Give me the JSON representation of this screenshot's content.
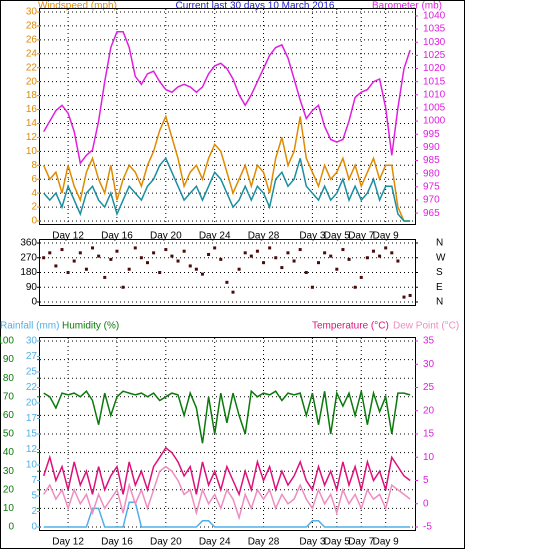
{
  "chart_data": [
    {
      "type": "line",
      "title": "Current last 30 days 10 March 2016",
      "ylabel": "Windspeed (mph)",
      "y2label": "Barometer (mb)",
      "x": [
        10,
        10.5,
        11,
        11.5,
        12,
        12.5,
        13,
        13.5,
        14,
        14.5,
        15,
        15.5,
        16,
        16.5,
        17,
        17.5,
        18,
        18.5,
        19,
        19.5,
        20,
        20.5,
        21,
        21.5,
        22,
        22.5,
        23,
        23.5,
        24,
        24.5,
        25,
        25.5,
        26,
        26.5,
        27,
        27.5,
        28,
        28.5,
        29,
        29.5,
        30,
        30.5,
        31,
        31.5,
        32,
        32.5,
        33,
        33.5,
        34,
        34.5,
        35,
        35.5,
        36,
        36.5,
        37,
        37.5,
        38,
        38.5,
        39,
        39.5,
        40
      ],
      "xlim": [
        9.7,
        40.4
      ],
      "xticks": [
        {
          "value": 12,
          "label": "Day 12"
        },
        {
          "value": 16,
          "label": "Day 16"
        },
        {
          "value": 20,
          "label": "Day 20"
        },
        {
          "value": 24,
          "label": "Day 24"
        },
        {
          "value": 28,
          "label": "Day 28"
        },
        {
          "value": 32,
          "label": "Day 3"
        },
        {
          "value": 34,
          "label": "Day 5"
        },
        {
          "value": 36,
          "label": "Day 7"
        },
        {
          "value": 38,
          "label": "Day 9"
        }
      ],
      "ylim": [
        0,
        30
      ],
      "yticks": [
        0,
        2,
        4,
        6,
        8,
        10,
        12,
        14,
        16,
        18,
        20,
        22,
        24,
        26,
        28,
        30
      ],
      "y2lim": [
        962,
        1041.5
      ],
      "y2ticks": [
        965,
        970,
        975,
        980,
        985,
        990,
        995,
        1000,
        1005,
        1010,
        1015,
        1020,
        1025,
        1030,
        1035,
        1040
      ],
      "grid": true,
      "series": [
        {
          "color": "#e08a00",
          "values": [
            8,
            6,
            7,
            4,
            8,
            5,
            3,
            7,
            9,
            6,
            4,
            8,
            3,
            6,
            8,
            7,
            5,
            8,
            10,
            13,
            15,
            12,
            9,
            5,
            7,
            8,
            6,
            9,
            11,
            10,
            7,
            4,
            6,
            8,
            5,
            8,
            7,
            4,
            9,
            12,
            8,
            10,
            15,
            9,
            7,
            5,
            8,
            6,
            7,
            9,
            6,
            8,
            5,
            7,
            9,
            6,
            8,
            8,
            2,
            0,
            0
          ]
        },
        {
          "color": "#1a8fa0",
          "values": [
            4,
            3,
            4,
            2,
            5,
            3,
            1,
            4,
            5,
            3,
            2,
            4,
            1,
            3,
            5,
            4,
            3,
            5,
            6,
            8,
            9,
            7,
            5,
            3,
            4,
            5,
            3,
            5,
            7,
            6,
            4,
            2,
            3,
            5,
            3,
            5,
            4,
            2,
            6,
            7,
            5,
            6,
            9,
            5,
            4,
            3,
            5,
            3,
            4,
            6,
            3,
            5,
            3,
            4,
            6,
            3,
            5,
            5,
            1,
            0,
            0
          ]
        },
        {
          "color": "#e020e0",
          "axis": "y2",
          "values": [
            996,
            1000,
            1004,
            1006,
            1003,
            996,
            984,
            987,
            989,
            1000,
            1015,
            1028,
            1034,
            1034,
            1028,
            1017,
            1014,
            1018,
            1019,
            1015,
            1012,
            1011,
            1013,
            1014,
            1013,
            1011,
            1013,
            1018,
            1021,
            1022,
            1020,
            1016,
            1010,
            1006,
            1010,
            1015,
            1020,
            1025,
            1028,
            1029,
            1024,
            1016,
            1008,
            1001,
            1004,
            1006,
            998,
            993,
            992,
            993,
            1000,
            1009,
            1011,
            1012,
            1015,
            1016,
            1005,
            987,
            1005,
            1020,
            1027
          ]
        }
      ]
    },
    {
      "type": "scatter",
      "x": [
        10,
        10.5,
        11,
        11.5,
        12,
        12.5,
        13,
        13.5,
        14,
        14.5,
        15,
        15.5,
        16,
        16.5,
        17,
        17.5,
        18,
        18.5,
        19,
        19.5,
        20,
        20.5,
        21,
        21.5,
        22,
        22.5,
        23,
        23.5,
        24,
        24.5,
        25,
        25.5,
        26,
        26.5,
        27,
        27.5,
        28,
        28.5,
        29,
        29.5,
        30,
        30.5,
        31,
        31.5,
        32,
        32.5,
        33,
        33.5,
        34,
        34.5,
        35,
        35.5,
        36,
        36.5,
        37,
        37.5,
        38,
        38.5,
        39,
        39.5,
        40
      ],
      "xlim": [
        9.7,
        40.4
      ],
      "ylim": [
        0,
        360
      ],
      "yticks": [
        0,
        90,
        180,
        270,
        360
      ],
      "y2lim": [
        0,
        360
      ],
      "y2ticks": [
        {
          "value": 360,
          "label": "N"
        },
        {
          "value": 270,
          "label": "W"
        },
        {
          "value": 180,
          "label": "S"
        },
        {
          "value": 90,
          "label": "E"
        },
        {
          "value": 0,
          "label": "N"
        }
      ],
      "grid": true,
      "color": "#4a0a0a",
      "values": [
        270,
        300,
        220,
        320,
        180,
        250,
        300,
        200,
        330,
        280,
        150,
        260,
        310,
        90,
        200,
        330,
        270,
        240,
        300,
        180,
        320,
        280,
        250,
        310,
        220,
        200,
        170,
        290,
        330,
        260,
        120,
        60,
        200,
        300,
        280,
        310,
        240,
        330,
        270,
        210,
        300,
        250,
        320,
        180,
        90,
        240,
        300,
        280,
        200,
        320,
        260,
        90,
        150,
        270,
        310,
        280,
        330,
        300,
        250,
        30,
        40
      ]
    },
    {
      "type": "line",
      "x": [
        10,
        10.5,
        11,
        11.5,
        12,
        12.5,
        13,
        13.5,
        14,
        14.5,
        15,
        15.5,
        16,
        16.5,
        17,
        17.5,
        18,
        18.5,
        19,
        19.5,
        20,
        20.5,
        21,
        21.5,
        22,
        22.5,
        23,
        23.5,
        24,
        24.5,
        25,
        25.5,
        26,
        26.5,
        27,
        27.5,
        28,
        28.5,
        29,
        29.5,
        30,
        30.5,
        31,
        31.5,
        32,
        32.5,
        33,
        33.5,
        34,
        34.5,
        35,
        35.5,
        36,
        36.5,
        37,
        37.5,
        38,
        38.5,
        39,
        39.5,
        40
      ],
      "xlim": [
        9.7,
        40.4
      ],
      "xticks": [
        {
          "value": 12,
          "label": "Day 12"
        },
        {
          "value": 16,
          "label": "Day 16"
        },
        {
          "value": 20,
          "label": "Day 20"
        },
        {
          "value": 24,
          "label": "Day 24"
        },
        {
          "value": 28,
          "label": "Day 28"
        },
        {
          "value": 32,
          "label": "Day 3"
        },
        {
          "value": 34,
          "label": "Day 5"
        },
        {
          "value": 36,
          "label": "Day 7"
        },
        {
          "value": 38,
          "label": "Day 9"
        }
      ],
      "ylim": [
        0,
        100
      ],
      "yticks": [
        0,
        10,
        20,
        30,
        40,
        50,
        60,
        70,
        80,
        90,
        100
      ],
      "y2lim": [
        -5,
        35
      ],
      "y2ticks": [
        -5,
        0,
        5,
        10,
        15,
        20,
        25,
        30,
        35
      ],
      "y3lim": [
        0,
        30
      ],
      "y3ticks": [
        0,
        {
          "value": 2.5,
          "label": "2"
        },
        5,
        {
          "value": 7.5,
          "label": "7"
        },
        10,
        {
          "value": 12.5,
          "label": "12"
        },
        15,
        {
          "value": 17.5,
          "label": "17"
        },
        20,
        {
          "value": 22.5,
          "label": "22"
        },
        25,
        {
          "value": 27.5,
          "label": "27"
        },
        30
      ],
      "grid": true,
      "series": [
        {
          "name": "Rainfall (mm)",
          "color": "#4fb0e8",
          "axis": "y3",
          "values": [
            0,
            0,
            0,
            0,
            0,
            0,
            0,
            0,
            3,
            3,
            0,
            0,
            0,
            0,
            4,
            4,
            0,
            0,
            0,
            0,
            0,
            0,
            0,
            0,
            0,
            0,
            1,
            1,
            0,
            0,
            0,
            0,
            0,
            0,
            0,
            0,
            0,
            0,
            0,
            0,
            0,
            0,
            0,
            0,
            1,
            1,
            0,
            0,
            0,
            0,
            0,
            0,
            0,
            0,
            0,
            0,
            0,
            0,
            0,
            0,
            0
          ]
        },
        {
          "name": "Humidity (%)",
          "color": "#0a7a0a",
          "values": [
            72,
            70,
            64,
            72,
            71,
            72,
            70,
            73,
            68,
            55,
            72,
            60,
            70,
            73,
            72,
            71,
            72,
            70,
            72,
            68,
            70,
            72,
            71,
            60,
            72,
            64,
            45,
            70,
            50,
            72,
            56,
            72,
            60,
            50,
            73,
            70,
            72,
            71,
            73,
            68,
            72,
            71,
            72,
            60,
            72,
            55,
            73,
            50,
            72,
            65,
            72,
            60,
            73,
            55,
            72,
            62,
            70,
            50,
            72,
            72,
            71
          ]
        },
        {
          "name": "Temperature (°C)",
          "color": "#e0107a",
          "axis": "y2",
          "values": [
            6,
            10,
            5,
            8,
            3,
            9,
            4,
            7,
            2,
            8,
            3,
            6,
            8,
            2,
            9,
            4,
            7,
            3,
            8,
            10,
            12,
            11,
            9,
            6,
            8,
            2,
            9,
            4,
            7,
            3,
            8,
            5,
            2,
            7,
            3,
            9,
            5,
            8,
            3,
            7,
            4,
            6,
            9,
            5,
            3,
            8,
            4,
            7,
            3,
            9,
            4,
            8,
            3,
            9,
            5,
            7,
            3,
            10,
            8,
            6,
            5
          ]
        },
        {
          "name": "Dew Point (°C)",
          "color": "#f08cc0",
          "axis": "y2",
          "values": [
            2,
            4,
            1,
            3,
            -1,
            3,
            0,
            2,
            -2,
            2,
            -1,
            1,
            3,
            -2,
            4,
            0,
            3,
            -1,
            3,
            7,
            8,
            7,
            5,
            2,
            3,
            -2,
            3,
            0,
            2,
            -1,
            3,
            1,
            -3,
            2,
            -1,
            3,
            1,
            3,
            -1,
            2,
            0,
            1,
            4,
            1,
            -1,
            3,
            0,
            2,
            -2,
            3,
            0,
            2,
            -1,
            3,
            1,
            2,
            -1,
            4,
            3,
            2,
            1
          ]
        }
      ]
    }
  ]
}
